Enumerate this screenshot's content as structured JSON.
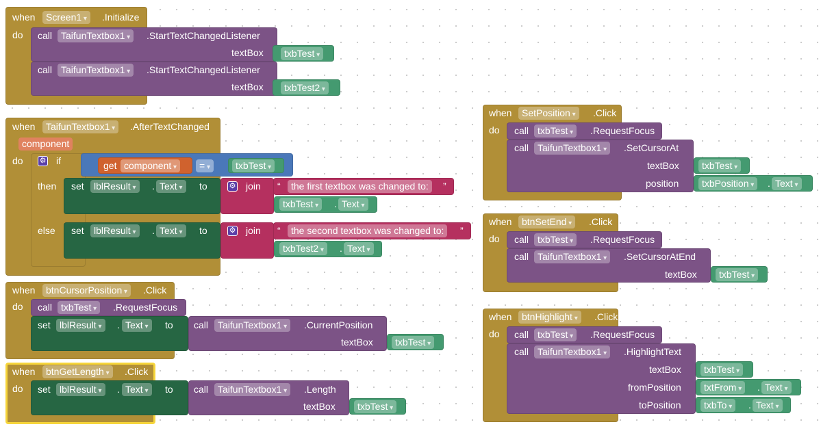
{
  "colors": {
    "event": "#b18f37",
    "call": "#7c5386",
    "set": "#266643",
    "component": "#449a70",
    "text": "#b5305f",
    "logic": "#4a78b9",
    "variable": "#d0622e",
    "highlight": "#f6d53b"
  },
  "kw": {
    "when": "when",
    "do": "do",
    "call": "call",
    "set": "set",
    "to": "to",
    "if": "if",
    "then": "then",
    "else": "else",
    "get": "get",
    "join": "join",
    "dot": ".",
    "open_quote": "“",
    "close_quote": "”"
  },
  "screen1_initialize": {
    "component": "Screen1",
    "event": ".Initialize",
    "calls": [
      {
        "component": "TaifunTextbox1",
        "method": ".StartTextChangedListener",
        "param": "textBox",
        "arg": "txbTest"
      },
      {
        "component": "TaifunTextbox1",
        "method": ".StartTextChangedListener",
        "param": "textBox",
        "arg": "txbTest2"
      }
    ]
  },
  "after_text_changed": {
    "component": "TaifunTextbox1",
    "event": ".AfterTextChanged",
    "param": "component",
    "condition": {
      "var": "component",
      "op": "=",
      "compare": "txbTest"
    },
    "then": {
      "component": "lblResult",
      "property": "Text",
      "string": "the first textbox was changed to:",
      "src": "txbTest",
      "src_prop": "Text"
    },
    "else": {
      "component": "lblResult",
      "property": "Text",
      "string": "the second textbox was changed to:",
      "src": "txbTest2",
      "src_prop": "Text"
    }
  },
  "btn_cursor_position": {
    "component": "btnCursorPosition",
    "event": ".Click",
    "focus": {
      "component": "txbTest",
      "method": ".RequestFocus"
    },
    "set": {
      "component": "lblResult",
      "property": "Text",
      "call_component": "TaifunTextbox1",
      "method": ".CurrentPosition",
      "param": "textBox",
      "arg": "txbTest"
    }
  },
  "btn_get_length": {
    "component": "btnGetLength",
    "event": ".Click",
    "set": {
      "component": "lblResult",
      "property": "Text",
      "call_component": "TaifunTextbox1",
      "method": ".Length",
      "param": "textBox",
      "arg": "txbTest"
    }
  },
  "set_position": {
    "component": "SetPosition",
    "event": ".Click",
    "focus": {
      "component": "txbTest",
      "method": ".RequestFocus"
    },
    "call": {
      "component": "TaifunTextbox1",
      "method": ".SetCursorAt",
      "params": [
        {
          "name": "textBox",
          "arg": "txbTest"
        },
        {
          "name": "position",
          "arg": "txbPosition",
          "prop": "Text"
        }
      ]
    }
  },
  "btn_set_end": {
    "component": "btnSetEnd",
    "event": ".Click",
    "focus": {
      "component": "txbTest",
      "method": ".RequestFocus"
    },
    "call": {
      "component": "TaifunTextbox1",
      "method": ".SetCursorAtEnd",
      "params": [
        {
          "name": "textBox",
          "arg": "txbTest"
        }
      ]
    }
  },
  "btn_highlight": {
    "component": "btnHighlight",
    "event": ".Click",
    "focus": {
      "component": "txbTest",
      "method": ".RequestFocus"
    },
    "call": {
      "component": "TaifunTextbox1",
      "method": ".HighlightText",
      "params": [
        {
          "name": "textBox",
          "arg": "txbTest"
        },
        {
          "name": "fromPosition",
          "arg": "txtFrom",
          "prop": "Text"
        },
        {
          "name": "toPosition",
          "arg": "txbTo",
          "prop": "Text"
        }
      ]
    }
  }
}
